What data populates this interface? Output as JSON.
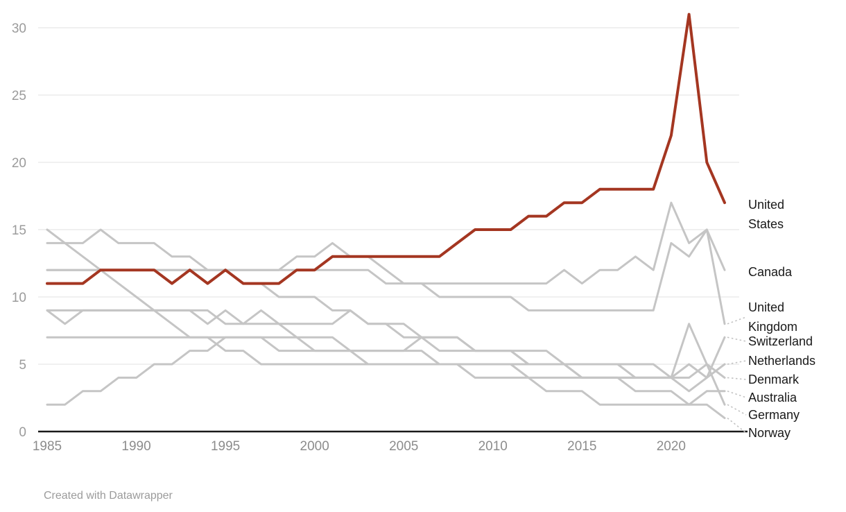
{
  "footer": {
    "credit": "Created with Datawrapper"
  },
  "colors": {
    "highlight": "#a43621",
    "gray_line": "#c5c5c5",
    "gridline": "#ebebeb",
    "axis": "#1a1a1a",
    "tick_text": "#9b9b9b",
    "label_text": "#191919",
    "connector": "#c2c2c2"
  },
  "chart_data": {
    "type": "line",
    "x_label": "",
    "y_label": "",
    "x": [
      1985,
      1986,
      1987,
      1988,
      1989,
      1990,
      1991,
      1992,
      1993,
      1994,
      1995,
      1996,
      1997,
      1998,
      1999,
      2000,
      2001,
      2002,
      2003,
      2004,
      2005,
      2006,
      2007,
      2008,
      2009,
      2010,
      2011,
      2012,
      2013,
      2014,
      2015,
      2016,
      2017,
      2018,
      2019,
      2020,
      2021,
      2022,
      2023
    ],
    "x_ticks": [
      1985,
      1990,
      1995,
      2000,
      2005,
      2010,
      2015,
      2020
    ],
    "y_ticks": [
      0,
      5,
      10,
      15,
      20,
      25,
      30
    ],
    "xlim": [
      1985,
      2023
    ],
    "ylim": [
      0,
      31
    ],
    "grid": "horizontal",
    "legend_position": "right-edge-labels",
    "series": [
      {
        "name": "united-states",
        "label": "United\nStates",
        "highlight": true,
        "values": [
          11,
          11,
          11,
          12,
          12,
          12,
          12,
          11,
          12,
          11,
          12,
          11,
          11,
          11,
          12,
          12,
          13,
          13,
          13,
          13,
          13,
          13,
          13,
          14,
          15,
          15,
          15,
          16,
          16,
          17,
          17,
          18,
          18,
          18,
          18,
          22,
          31,
          20,
          17
        ]
      },
      {
        "name": "canada",
        "label": "Canada",
        "highlight": false,
        "values": [
          12,
          12,
          12,
          12,
          12,
          12,
          12,
          12,
          12,
          12,
          12,
          12,
          12,
          12,
          12,
          12,
          12,
          12,
          12,
          11,
          11,
          11,
          11,
          11,
          11,
          11,
          11,
          11,
          11,
          12,
          11,
          12,
          12,
          13,
          12,
          17,
          14,
          15,
          12
        ]
      },
      {
        "name": "united-kingdom",
        "label": "United\nKingdom",
        "highlight": false,
        "values": [
          12,
          12,
          12,
          12,
          12,
          12,
          12,
          12,
          12,
          12,
          12,
          12,
          12,
          12,
          13,
          13,
          14,
          13,
          13,
          12,
          11,
          11,
          10,
          10,
          10,
          10,
          10,
          9,
          9,
          9,
          9,
          9,
          9,
          9,
          9,
          14,
          13,
          15,
          8
        ]
      },
      {
        "name": "switzerland",
        "label": "Switzerland",
        "highlight": false,
        "values": [
          9,
          8,
          9,
          9,
          9,
          9,
          9,
          9,
          9,
          8,
          9,
          8,
          9,
          8,
          7,
          7,
          7,
          6,
          6,
          6,
          6,
          7,
          7,
          7,
          6,
          6,
          6,
          6,
          6,
          5,
          5,
          5,
          5,
          5,
          5,
          4,
          5,
          4,
          7
        ]
      },
      {
        "name": "netherlands",
        "label": "Netherlands",
        "highlight": false,
        "values": [
          7,
          7,
          7,
          7,
          7,
          7,
          7,
          7,
          7,
          7,
          6,
          6,
          5,
          5,
          5,
          5,
          5,
          5,
          5,
          5,
          5,
          5,
          5,
          5,
          5,
          5,
          5,
          5,
          5,
          5,
          5,
          5,
          5,
          4,
          4,
          4,
          3,
          4,
          5
        ]
      },
      {
        "name": "denmark",
        "label": "Denmark",
        "highlight": false,
        "values": [
          9,
          9,
          9,
          9,
          9,
          9,
          9,
          9,
          9,
          9,
          8,
          8,
          8,
          8,
          8,
          8,
          8,
          9,
          8,
          8,
          7,
          7,
          6,
          6,
          6,
          6,
          6,
          5,
          5,
          5,
          4,
          4,
          4,
          4,
          4,
          4,
          4,
          5,
          4
        ]
      },
      {
        "name": "australia",
        "label": "Australia",
        "highlight": false,
        "values": [
          2,
          2,
          3,
          3,
          4,
          4,
          5,
          5,
          6,
          6,
          7,
          7,
          7,
          7,
          7,
          6,
          6,
          6,
          5,
          5,
          5,
          5,
          5,
          5,
          4,
          4,
          4,
          4,
          3,
          3,
          3,
          2,
          2,
          2,
          2,
          2,
          2,
          3,
          3
        ]
      },
      {
        "name": "germany",
        "label": "Germany",
        "highlight": false,
        "values": [
          15,
          14,
          13,
          12,
          11,
          10,
          9,
          8,
          7,
          7,
          7,
          7,
          7,
          6,
          6,
          6,
          6,
          6,
          6,
          6,
          6,
          6,
          5,
          5,
          5,
          5,
          5,
          4,
          4,
          4,
          4,
          4,
          4,
          4,
          4,
          4,
          8,
          5,
          2
        ]
      },
      {
        "name": "norway",
        "label": "Norway",
        "highlight": false,
        "values": [
          14,
          14,
          14,
          15,
          14,
          14,
          14,
          13,
          13,
          12,
          12,
          11,
          11,
          10,
          10,
          10,
          9,
          9,
          8,
          8,
          8,
          7,
          7,
          7,
          6,
          6,
          6,
          5,
          5,
          5,
          4,
          4,
          4,
          3,
          3,
          3,
          2,
          2,
          1
        ]
      }
    ]
  }
}
